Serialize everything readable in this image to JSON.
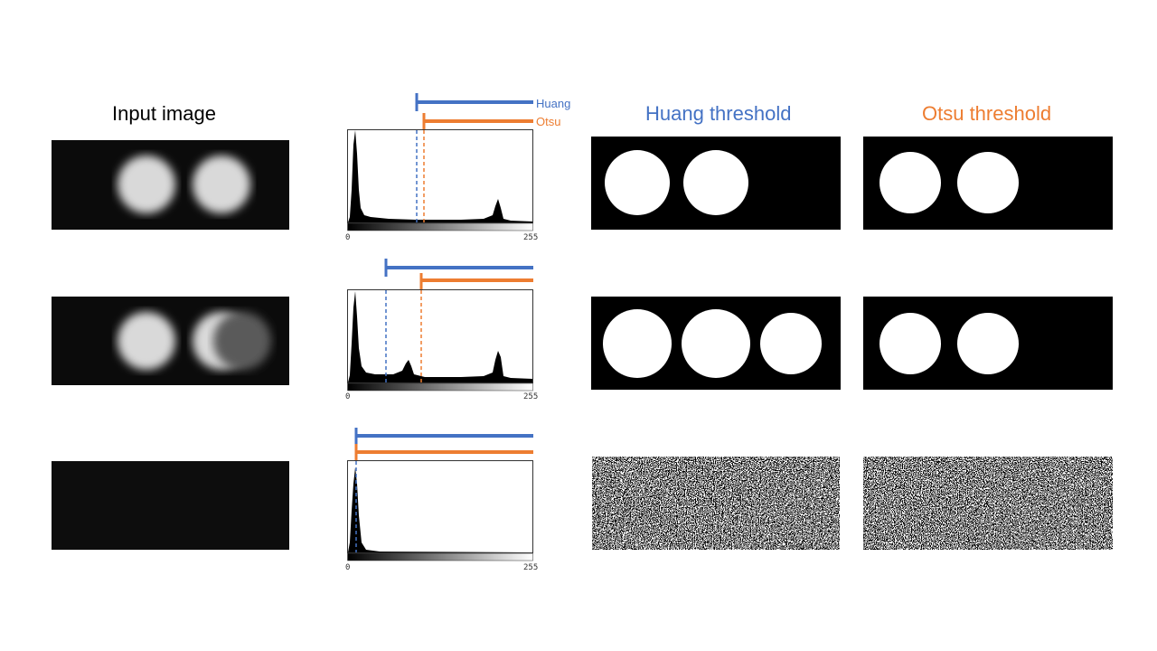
{
  "columns": {
    "input": "Input image",
    "huang": "Huang  threshold",
    "otsu": "Otsu threshold"
  },
  "legend": {
    "huang": "Huang",
    "otsu": "Otsu"
  },
  "axis": {
    "min": "0",
    "max": "255"
  },
  "colors": {
    "huang": "#4472C4",
    "otsu": "#ED7D31"
  },
  "rows": [
    {
      "huang_threshold": 75,
      "otsu_threshold": 84
    },
    {
      "huang_threshold": 42,
      "otsu_threshold": 80
    },
    {
      "huang_threshold": 9,
      "otsu_threshold": 9
    }
  ]
}
